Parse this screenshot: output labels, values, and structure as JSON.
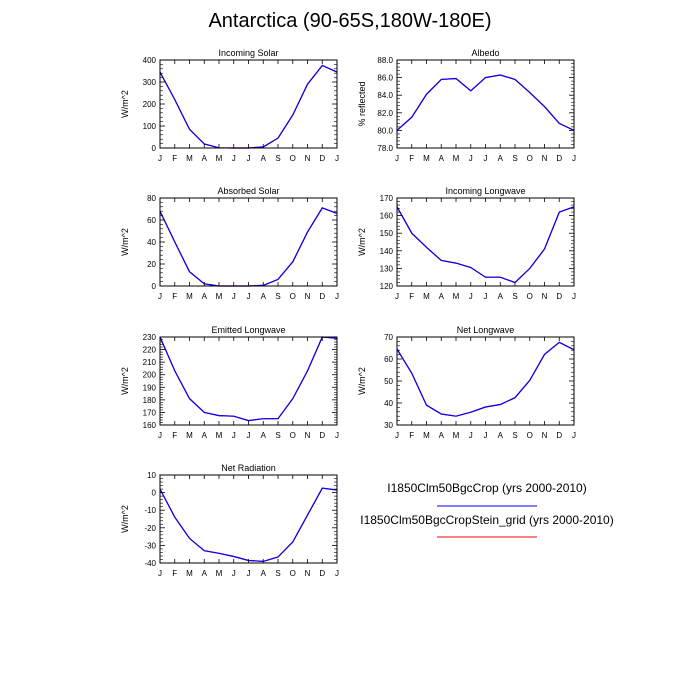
{
  "title": "Antarctica (90-65S,180W-180E)",
  "colors": {
    "series1": "#0000ff",
    "series2": "#ff0000",
    "axis": "#000000"
  },
  "legend": [
    {
      "label": "I1850Clm50BgcCrop (yrs 2000-2010)",
      "color": "#0000ff"
    },
    {
      "label": "I1850Clm50BgcCropStein_grid (yrs 2000-2010)",
      "color": "#ff0000"
    }
  ],
  "chart_data": [
    {
      "type": "line",
      "title": "Incoming Solar",
      "ylabel": "W/m^2",
      "xlabel": "",
      "categories": [
        "J",
        "F",
        "M",
        "A",
        "M",
        "J",
        "J",
        "A",
        "S",
        "O",
        "N",
        "D",
        "J"
      ],
      "ylim": [
        0,
        400
      ],
      "yticks": [
        0,
        100,
        200,
        300,
        400
      ],
      "ytick_labels": [
        "0",
        "100",
        "200",
        "300",
        "400"
      ],
      "series": [
        {
          "values": [
            345,
            220,
            85,
            18,
            1,
            0,
            0,
            5,
            45,
            150,
            290,
            375,
            345
          ]
        },
        {
          "values": [
            345,
            220,
            85,
            18,
            1,
            0,
            0,
            5,
            45,
            150,
            290,
            375,
            345
          ]
        }
      ]
    },
    {
      "type": "line",
      "title": "Albedo",
      "ylabel": "% reflected",
      "xlabel": "",
      "categories": [
        "J",
        "F",
        "M",
        "A",
        "M",
        "J",
        "J",
        "A",
        "S",
        "O",
        "N",
        "D",
        "J"
      ],
      "ylim": [
        78,
        88
      ],
      "yticks": [
        78,
        80,
        82,
        84,
        86,
        88
      ],
      "ytick_labels": [
        "78.0",
        "80.0",
        "82.0",
        "84.0",
        "86.0",
        "88.0"
      ],
      "series": [
        {
          "values": [
            80.0,
            81.5,
            84.1,
            85.8,
            85.9,
            84.5,
            86.0,
            86.3,
            85.8,
            84.3,
            82.7,
            80.8,
            80.0
          ]
        },
        {
          "values": [
            80.0,
            81.5,
            84.1,
            85.8,
            85.9,
            84.5,
            86.0,
            86.3,
            85.8,
            84.3,
            82.7,
            80.8,
            80.0
          ]
        }
      ]
    },
    {
      "type": "line",
      "title": "Absorbed Solar",
      "ylabel": "W/m^2",
      "xlabel": "",
      "categories": [
        "J",
        "F",
        "M",
        "A",
        "M",
        "J",
        "J",
        "A",
        "S",
        "O",
        "N",
        "D",
        "J"
      ],
      "ylim": [
        0,
        80
      ],
      "yticks": [
        0,
        20,
        40,
        60,
        80
      ],
      "ytick_labels": [
        "0",
        "20",
        "40",
        "60",
        "80"
      ],
      "series": [
        {
          "values": [
            68,
            40,
            13,
            2,
            0,
            0,
            0,
            0.5,
            6,
            22,
            49,
            71,
            66
          ]
        },
        {
          "values": [
            68,
            40,
            13,
            2,
            0,
            0,
            0,
            0.5,
            6,
            22,
            49,
            71,
            66
          ]
        }
      ]
    },
    {
      "type": "line",
      "title": "Incoming Longwave",
      "ylabel": "W/m^2",
      "xlabel": "",
      "categories": [
        "J",
        "F",
        "M",
        "A",
        "M",
        "J",
        "J",
        "A",
        "S",
        "O",
        "N",
        "D",
        "J"
      ],
      "ylim": [
        120,
        170
      ],
      "yticks": [
        120,
        130,
        140,
        150,
        160,
        170
      ],
      "ytick_labels": [
        "120",
        "130",
        "140",
        "150",
        "160",
        "170"
      ],
      "series": [
        {
          "values": [
            165,
            150,
            142,
            134.5,
            133,
            130.5,
            125,
            125,
            122,
            130,
            141,
            162,
            165
          ]
        },
        {
          "values": [
            165,
            150,
            142,
            134.5,
            133,
            130.5,
            125,
            125,
            122,
            130,
            141,
            162,
            165
          ]
        }
      ]
    },
    {
      "type": "line",
      "title": "Emitted Longwave",
      "ylabel": "W/m^2",
      "xlabel": "",
      "categories": [
        "J",
        "F",
        "M",
        "A",
        "M",
        "J",
        "J",
        "A",
        "S",
        "O",
        "N",
        "D",
        "J"
      ],
      "ylim": [
        160,
        230
      ],
      "yticks": [
        160,
        170,
        180,
        190,
        200,
        210,
        220,
        230
      ],
      "ytick_labels": [
        "160",
        "170",
        "180",
        "190",
        "200",
        "210",
        "220",
        "230"
      ],
      "series": [
        {
          "values": [
            230,
            203,
            181,
            170,
            167.5,
            167,
            163.5,
            165,
            165,
            181,
            203,
            230,
            229
          ]
        },
        {
          "values": [
            230,
            203,
            181,
            170,
            167.5,
            167,
            163.5,
            165,
            165,
            181,
            203,
            230,
            229
          ]
        }
      ]
    },
    {
      "type": "line",
      "title": "Net Longwave",
      "ylabel": "W/m^2",
      "xlabel": "",
      "categories": [
        "J",
        "F",
        "M",
        "A",
        "M",
        "J",
        "J",
        "A",
        "S",
        "O",
        "N",
        "D",
        "J"
      ],
      "ylim": [
        30,
        70
      ],
      "yticks": [
        30,
        40,
        50,
        60,
        70
      ],
      "ytick_labels": [
        "30",
        "40",
        "50",
        "60",
        "70"
      ],
      "series": [
        {
          "values": [
            64.5,
            53.5,
            39,
            35,
            34,
            35.8,
            38.2,
            39.3,
            42.4,
            50.3,
            62.1,
            67.6,
            64.2
          ]
        },
        {
          "values": [
            64.5,
            53.5,
            39,
            35,
            34,
            35.8,
            38.2,
            39.3,
            42.4,
            50.3,
            62.1,
            67.6,
            64.2
          ]
        }
      ]
    },
    {
      "type": "line",
      "title": "Net Radiation",
      "ylabel": "W/m^2",
      "xlabel": "",
      "categories": [
        "J",
        "F",
        "M",
        "A",
        "M",
        "J",
        "J",
        "A",
        "S",
        "O",
        "N",
        "D",
        "J"
      ],
      "ylim": [
        -40,
        10
      ],
      "yticks": [
        -40,
        -30,
        -20,
        -10,
        0,
        10
      ],
      "ytick_labels": [
        "-40",
        "-30",
        "-20",
        "-10",
        "0",
        "10"
      ],
      "series": [
        {
          "values": [
            2,
            -14,
            -26,
            -33,
            -34.5,
            -36.3,
            -38.6,
            -39.1,
            -36.6,
            -28,
            -12.8,
            2.5,
            1.5
          ]
        },
        {
          "values": [
            2,
            -14,
            -26,
            -33,
            -34.5,
            -36.3,
            -38.6,
            -39.1,
            -36.6,
            -28,
            -12.8,
            2.5,
            1.5
          ]
        }
      ]
    }
  ]
}
